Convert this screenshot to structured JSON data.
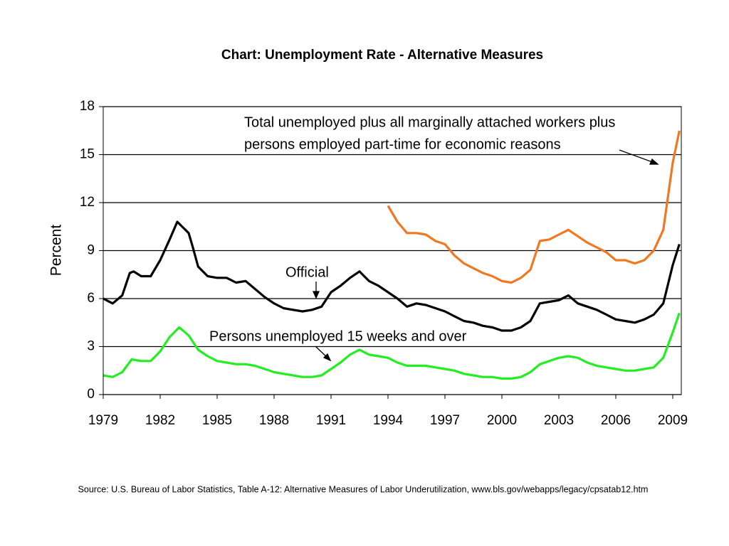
{
  "chart_data": {
    "type": "line",
    "title": "Chart: Unemployment Rate - Alternative Measures",
    "ylabel": "Percent",
    "source": "Source: U.S. Bureau of Labor Statistics, Table A-12: Alternative Measures of Labor Underutilization, www.bls.gov/webapps/legacy/cpsatab12.htm",
    "annotations": [
      "Total unemployed plus all marginally attached workers plus",
      "persons employed part-time for economic reasons",
      "Official",
      "Persons unemployed 15 weeks and over"
    ],
    "xlim": [
      1979,
      2009.45
    ],
    "xticks": [
      1979,
      1982,
      1985,
      1988,
      1991,
      1994,
      1997,
      2000,
      2003,
      2006,
      2009
    ],
    "ylim": [
      0,
      18
    ],
    "yticks": [
      0,
      3,
      6,
      9,
      12,
      15,
      18
    ],
    "grid": true,
    "series": [
      {
        "name": "Official",
        "color": "#000000",
        "x": [
          1979,
          1979.5,
          1980,
          1980.4,
          1980.6,
          1981,
          1981.5,
          1982,
          1982.5,
          1982.9,
          1983.5,
          1983.7,
          1984,
          1984.5,
          1985,
          1985.5,
          1986,
          1986.5,
          1987,
          1987.5,
          1988,
          1988.5,
          1989,
          1989.5,
          1990,
          1990.5,
          1991,
          1991.5,
          1992,
          1992.5,
          1993,
          1993.5,
          1994,
          1994.5,
          1995,
          1995.5,
          1996,
          1996.5,
          1997,
          1997.5,
          1998,
          1998.5,
          1999,
          1999.5,
          2000,
          2000.5,
          2001,
          2001.5,
          2002,
          2002.5,
          2003,
          2003.5,
          2004,
          2004.5,
          2005,
          2005.5,
          2006,
          2006.5,
          2007,
          2007.5,
          2008,
          2008.5,
          2009,
          2009.35
        ],
        "values": [
          6.0,
          5.7,
          6.2,
          7.6,
          7.7,
          7.4,
          7.4,
          8.4,
          9.7,
          10.8,
          10.1,
          9.3,
          8.0,
          7.4,
          7.3,
          7.3,
          7.0,
          7.1,
          6.6,
          6.1,
          5.7,
          5.4,
          5.3,
          5.2,
          5.3,
          5.5,
          6.4,
          6.8,
          7.3,
          7.7,
          7.1,
          6.8,
          6.4,
          6.0,
          5.5,
          5.7,
          5.6,
          5.4,
          5.2,
          4.9,
          4.6,
          4.5,
          4.3,
          4.2,
          4.0,
          4.0,
          4.2,
          4.6,
          5.7,
          5.8,
          5.9,
          6.2,
          5.7,
          5.5,
          5.3,
          5.0,
          4.7,
          4.6,
          4.5,
          4.7,
          5.0,
          5.7,
          8.1,
          9.4
        ]
      },
      {
        "name": "Total unemployed plus all marginally attached workers plus persons employed part-time for economic reasons",
        "color": "#f07820",
        "x": [
          1994,
          1994.5,
          1995,
          1995.5,
          1996,
          1996.5,
          1997,
          1997.5,
          1998,
          1998.5,
          1999,
          1999.5,
          2000,
          2000.5,
          2001,
          2001.5,
          2002,
          2002.5,
          2003,
          2003.5,
          2004,
          2004.5,
          2005,
          2005.5,
          2006,
          2006.5,
          2007,
          2007.5,
          2008,
          2008.5,
          2009,
          2009.35
        ],
        "values": [
          11.8,
          10.8,
          10.1,
          10.1,
          10.0,
          9.6,
          9.4,
          8.7,
          8.2,
          7.9,
          7.6,
          7.4,
          7.1,
          7.0,
          7.3,
          7.8,
          9.6,
          9.7,
          10.0,
          10.3,
          9.9,
          9.5,
          9.2,
          8.9,
          8.4,
          8.4,
          8.2,
          8.4,
          9.0,
          10.3,
          14.5,
          16.5
        ]
      },
      {
        "name": "Persons unemployed 15 weeks and over",
        "color": "#22ee22",
        "x": [
          1979,
          1979.5,
          1980,
          1980.5,
          1981,
          1981.5,
          1982,
          1982.5,
          1983,
          1983.5,
          1984,
          1984.5,
          1985,
          1985.5,
          1986,
          1986.5,
          1987,
          1987.5,
          1988,
          1988.5,
          1989,
          1989.5,
          1990,
          1990.5,
          1991,
          1991.5,
          1992,
          1992.5,
          1993,
          1993.5,
          1994,
          1994.5,
          1995,
          1995.5,
          1996,
          1996.5,
          1997,
          1997.5,
          1998,
          1998.5,
          1999,
          1999.5,
          2000,
          2000.5,
          2001,
          2001.5,
          2002,
          2002.5,
          2003,
          2003.5,
          2004,
          2004.5,
          2005,
          2005.5,
          2006,
          2006.5,
          2007,
          2007.5,
          2008,
          2008.5,
          2009,
          2009.35
        ],
        "values": [
          1.2,
          1.1,
          1.4,
          2.2,
          2.1,
          2.1,
          2.7,
          3.6,
          4.2,
          3.7,
          2.8,
          2.4,
          2.1,
          2.0,
          1.9,
          1.9,
          1.8,
          1.6,
          1.4,
          1.3,
          1.2,
          1.1,
          1.1,
          1.2,
          1.6,
          2.0,
          2.5,
          2.8,
          2.5,
          2.4,
          2.3,
          2.0,
          1.8,
          1.8,
          1.8,
          1.7,
          1.6,
          1.5,
          1.3,
          1.2,
          1.1,
          1.1,
          1.0,
          1.0,
          1.1,
          1.4,
          1.9,
          2.1,
          2.3,
          2.4,
          2.3,
          2.0,
          1.8,
          1.7,
          1.6,
          1.5,
          1.5,
          1.6,
          1.7,
          2.3,
          3.9,
          5.1
        ]
      }
    ]
  }
}
